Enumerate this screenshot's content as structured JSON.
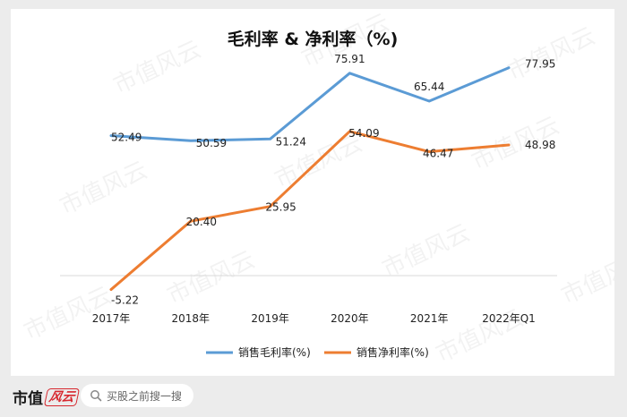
{
  "chart_data": {
    "type": "line",
    "title": "毛利率 & 净利率（%)",
    "categories": [
      "2017年",
      "2018年",
      "2019年",
      "2020年",
      "2021年",
      "2022年Q1"
    ],
    "series": [
      {
        "name": "销售毛利率(%)",
        "color": "#5b9bd5",
        "values": [
          52.49,
          50.59,
          51.24,
          75.91,
          65.44,
          77.95
        ]
      },
      {
        "name": "销售净利率(%)",
        "color": "#ed7d31",
        "values": [
          -5.22,
          20.4,
          25.95,
          54.09,
          46.47,
          48.98
        ]
      }
    ],
    "labels": [
      [
        "52.49",
        "50.59",
        "51.24",
        "75.91",
        "65.44",
        "77.95"
      ],
      [
        "-5.22",
        "20.40",
        "25.95",
        "54.09",
        "46.47",
        "48.98"
      ]
    ],
    "ylim": [
      -10,
      90
    ],
    "grid": false,
    "legend": "bottom"
  },
  "watermark": "市值风云",
  "footer": {
    "brand_text": "市值",
    "brand_mark": "风云",
    "search_placeholder": "买股之前搜一搜"
  }
}
